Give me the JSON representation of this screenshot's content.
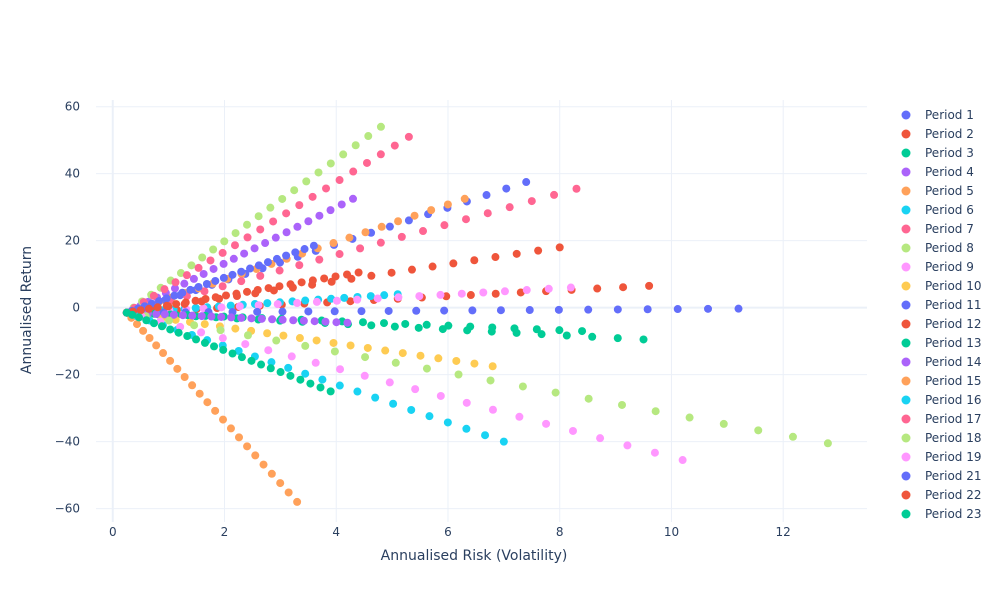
{
  "chart_data": {
    "type": "scatter",
    "title": "",
    "xlabel": "Annualised Risk (Volatility)",
    "ylabel": "Annualised Return",
    "xlim": [
      -0.3,
      13.5
    ],
    "ylim": [
      -64,
      62
    ],
    "xticks": [
      0,
      2,
      4,
      6,
      8,
      10,
      12
    ],
    "yticks": [
      -60,
      -40,
      -20,
      0,
      20,
      40,
      60
    ],
    "grid": true,
    "legend_position": "right",
    "origin": [
      0.25,
      -1.5
    ],
    "series": [
      {
        "name": "Period 1",
        "color": "#636efa",
        "end_x": 7.4,
        "end_y": 37.5,
        "points": 24
      },
      {
        "name": "Period 2",
        "color": "#EF553B",
        "end_x": 9.6,
        "end_y": 6.5,
        "points": 24
      },
      {
        "name": "Period 3",
        "color": "#00cc96",
        "end_x": 9.5,
        "end_y": -9.5,
        "points": 24
      },
      {
        "name": "Period 4",
        "color": "#ab63fa",
        "end_x": 4.3,
        "end_y": 32.5,
        "points": 24
      },
      {
        "name": "Period 5",
        "color": "#FFA15A",
        "end_x": 6.3,
        "end_y": 32.5,
        "points": 24
      },
      {
        "name": "Period 6",
        "color": "#19d3f3",
        "end_x": 5.1,
        "end_y": 4.0,
        "points": 24
      },
      {
        "name": "Period 7",
        "color": "#FF6692",
        "end_x": 8.3,
        "end_y": 35.5,
        "points": 24
      },
      {
        "name": "Period 8",
        "color": "#B6E880",
        "end_x": 4.8,
        "end_y": 54.0,
        "points": 24
      },
      {
        "name": "Period 9",
        "color": "#FF97FF",
        "end_x": 8.2,
        "end_y": 6.0,
        "points": 24
      },
      {
        "name": "Period 10",
        "color": "#FECB52",
        "end_x": 6.8,
        "end_y": -17.5,
        "points": 24
      },
      {
        "name": "Period 11",
        "color": "#636efa",
        "end_x": 11.2,
        "end_y": -0.3,
        "points": 24
      },
      {
        "name": "Period 12",
        "color": "#EF553B",
        "end_x": 8.0,
        "end_y": 18.0,
        "points": 24
      },
      {
        "name": "Period 13",
        "color": "#00cc96",
        "end_x": 8.4,
        "end_y": -7.0,
        "points": 24
      },
      {
        "name": "Period 14",
        "color": "#ab63fa",
        "end_x": 4.2,
        "end_y": -4.5,
        "points": 24
      },
      {
        "name": "Period 15",
        "color": "#FFA15A",
        "end_x": 3.3,
        "end_y": -58.0,
        "points": 24
      },
      {
        "name": "Period 16",
        "color": "#19d3f3",
        "end_x": 7.0,
        "end_y": -40.0,
        "points": 24
      },
      {
        "name": "Period 17",
        "color": "#FF6692",
        "end_x": 5.3,
        "end_y": 51.0,
        "points": 24
      },
      {
        "name": "Period 18",
        "color": "#B6E880",
        "end_x": 12.8,
        "end_y": -40.5,
        "points": 24
      },
      {
        "name": "Period 19",
        "color": "#FF97FF",
        "end_x": 10.2,
        "end_y": -45.5,
        "points": 24
      },
      {
        "name": "Period 21",
        "color": "#636efa",
        "end_x": 3.6,
        "end_y": 18.5,
        "points": 24
      },
      {
        "name": "Period 22",
        "color": "#EF553B",
        "end_x": 4.4,
        "end_y": 10.5,
        "points": 24
      },
      {
        "name": "Period 23",
        "color": "#00cc96",
        "end_x": 3.9,
        "end_y": -25.0,
        "points": 24
      }
    ]
  }
}
